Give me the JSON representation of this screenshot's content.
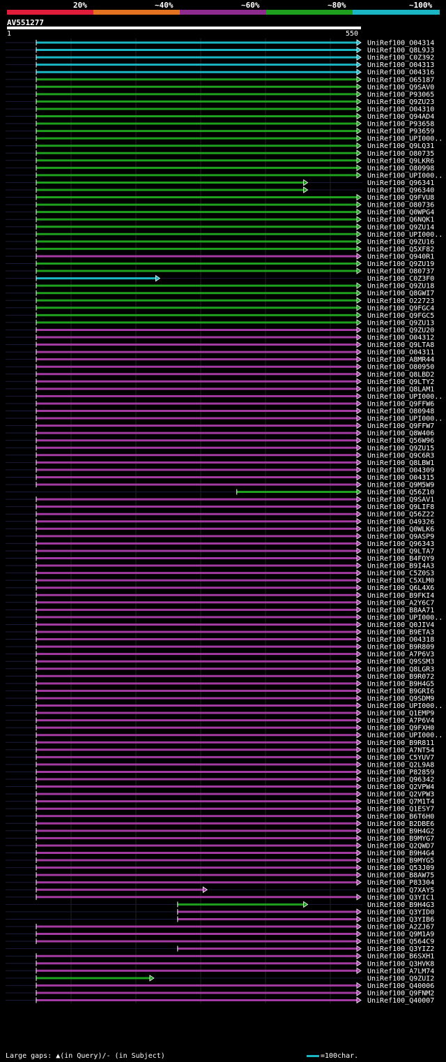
{
  "chart_data": {
    "type": "alignment-overview",
    "query_id": "AV551277",
    "query_length_start": "1",
    "query_length_end": "550",
    "identity_legend": [
      {
        "label": "20%",
        "color": "#e01e3c"
      },
      {
        "label": "~40%",
        "color": "#e37321"
      },
      {
        "label": "~60%",
        "color": "#8e2b8e"
      },
      {
        "label": "~80%",
        "color": "#1ea01e"
      },
      {
        "label": "~100%",
        "color": "#1ab6c4"
      }
    ],
    "gap_legend": "Large gaps: ▲(in Query)/- (in Subject)",
    "scale_legend": "=100char.",
    "hits": [
      {
        "name": "UniRef100_O04314",
        "color": "cyan",
        "start": 1,
        "end": 550
      },
      {
        "name": "UniRef100_Q8L9J3",
        "color": "cyan",
        "start": 1,
        "end": 550
      },
      {
        "name": "UniRef100_C0Z392",
        "color": "cyan",
        "start": 1,
        "end": 550
      },
      {
        "name": "UniRef100_O04313",
        "color": "cyan",
        "start": 1,
        "end": 550
      },
      {
        "name": "UniRef100_O04316",
        "color": "cyan",
        "start": 1,
        "end": 550
      },
      {
        "name": "UniRef100_O65187",
        "color": "green",
        "start": 1,
        "end": 550
      },
      {
        "name": "UniRef100_Q9SAV0",
        "color": "green",
        "start": 1,
        "end": 550
      },
      {
        "name": "UniRef100_P93065",
        "color": "green",
        "start": 1,
        "end": 550
      },
      {
        "name": "UniRef100_Q9ZU23",
        "color": "green",
        "start": 1,
        "end": 550
      },
      {
        "name": "UniRef100_O04310",
        "color": "green",
        "start": 1,
        "end": 550
      },
      {
        "name": "UniRef100_Q94AD4",
        "color": "green",
        "start": 1,
        "end": 550
      },
      {
        "name": "UniRef100_P93658",
        "color": "green",
        "start": 1,
        "end": 550
      },
      {
        "name": "UniRef100_P93659",
        "color": "green",
        "start": 1,
        "end": 550
      },
      {
        "name": "UniRef100_UPI000..",
        "color": "green",
        "start": 1,
        "end": 550
      },
      {
        "name": "UniRef100_Q9LQ31",
        "color": "green",
        "start": 1,
        "end": 550
      },
      {
        "name": "UniRef100_O80735",
        "color": "green",
        "start": 1,
        "end": 550
      },
      {
        "name": "UniRef100_Q9LKR6",
        "color": "green",
        "start": 1,
        "end": 550
      },
      {
        "name": "UniRef100_O80998",
        "color": "green",
        "start": 1,
        "end": 550
      },
      {
        "name": "UniRef100_UPI000..",
        "color": "green",
        "start": 1,
        "end": 550
      },
      {
        "name": "UniRef100_Q96341",
        "color": "green",
        "start": 1,
        "end": 460
      },
      {
        "name": "UniRef100_Q96340",
        "color": "green",
        "start": 1,
        "end": 460
      },
      {
        "name": "UniRef100_Q9FVU8",
        "color": "green",
        "start": 1,
        "end": 550
      },
      {
        "name": "UniRef100_O80736",
        "color": "green",
        "start": 1,
        "end": 550
      },
      {
        "name": "UniRef100_Q0WPG4",
        "color": "green",
        "start": 1,
        "end": 550
      },
      {
        "name": "UniRef100_Q6NQK1",
        "color": "green",
        "start": 1,
        "end": 550
      },
      {
        "name": "UniRef100_Q9ZU14",
        "color": "green",
        "start": 1,
        "end": 550
      },
      {
        "name": "UniRef100_UPI000..",
        "color": "green",
        "start": 1,
        "end": 550
      },
      {
        "name": "UniRef100_Q9ZU16",
        "color": "green",
        "start": 1,
        "end": 550
      },
      {
        "name": "UniRef100_Q5XF82",
        "color": "green",
        "start": 1,
        "end": 550
      },
      {
        "name": "UniRef100_Q940R1",
        "color": "magenta",
        "start": 1,
        "end": 550
      },
      {
        "name": "UniRef100_Q9ZU19",
        "color": "green",
        "start": 1,
        "end": 550
      },
      {
        "name": "UniRef100_O80737",
        "color": "green",
        "start": 1,
        "end": 550
      },
      {
        "name": "UniRef100_C0Z3F0",
        "color": "cyan",
        "start": 1,
        "end": 210
      },
      {
        "name": "UniRef100_Q9ZU18",
        "color": "green",
        "start": 1,
        "end": 550
      },
      {
        "name": "UniRef100_Q8GWI7",
        "color": "green",
        "start": 1,
        "end": 550
      },
      {
        "name": "UniRef100_O22723",
        "color": "green",
        "start": 1,
        "end": 550
      },
      {
        "name": "UniRef100_Q9FGC4",
        "color": "green",
        "start": 1,
        "end": 550
      },
      {
        "name": "UniRef100_Q9FGC5",
        "color": "green",
        "start": 1,
        "end": 550
      },
      {
        "name": "UniRef100_Q9ZU13",
        "color": "green",
        "start": 1,
        "end": 550
      },
      {
        "name": "UniRef100_Q9ZU20",
        "color": "magenta",
        "start": 1,
        "end": 550
      },
      {
        "name": "UniRef100_O04312",
        "color": "magenta",
        "start": 1,
        "end": 550
      },
      {
        "name": "UniRef100_Q9LTA8",
        "color": "magenta",
        "start": 1,
        "end": 550
      },
      {
        "name": "UniRef100_O04311",
        "color": "magenta",
        "start": 1,
        "end": 550
      },
      {
        "name": "UniRef100_A8MR44",
        "color": "magenta",
        "start": 1,
        "end": 550
      },
      {
        "name": "UniRef100_O80950",
        "color": "magenta",
        "start": 1,
        "end": 550
      },
      {
        "name": "UniRef100_Q8LBD2",
        "color": "magenta",
        "start": 1,
        "end": 550
      },
      {
        "name": "UniRef100_Q9LTY2",
        "color": "magenta",
        "start": 1,
        "end": 550
      },
      {
        "name": "UniRef100_Q8LAM1",
        "color": "magenta",
        "start": 1,
        "end": 550
      },
      {
        "name": "UniRef100_UPI000..",
        "color": "magenta",
        "start": 1,
        "end": 550
      },
      {
        "name": "UniRef100_Q9FFW6",
        "color": "magenta",
        "start": 1,
        "end": 550
      },
      {
        "name": "UniRef100_O80948",
        "color": "magenta",
        "start": 1,
        "end": 550
      },
      {
        "name": "UniRef100_UPI000..",
        "color": "magenta",
        "start": 1,
        "end": 550
      },
      {
        "name": "UniRef100_Q9FFW7",
        "color": "magenta",
        "start": 1,
        "end": 550
      },
      {
        "name": "UniRef100_Q8W406",
        "color": "magenta",
        "start": 1,
        "end": 550
      },
      {
        "name": "UniRef100_Q56W96",
        "color": "magenta",
        "start": 1,
        "end": 550
      },
      {
        "name": "UniRef100_Q9ZU15",
        "color": "magenta",
        "start": 1,
        "end": 550
      },
      {
        "name": "UniRef100_Q9C6R3",
        "color": "magenta",
        "start": 1,
        "end": 550
      },
      {
        "name": "UniRef100_Q8LBW1",
        "color": "magenta",
        "start": 1,
        "end": 550
      },
      {
        "name": "UniRef100_O04309",
        "color": "magenta",
        "start": 1,
        "end": 550
      },
      {
        "name": "UniRef100_O04315",
        "color": "magenta",
        "start": 1,
        "end": 550
      },
      {
        "name": "UniRef100_Q9M5W9",
        "color": "magenta",
        "start": 1,
        "end": 550
      },
      {
        "name": "UniRef100_Q56Z10",
        "color": "green",
        "start": 340,
        "end": 550
      },
      {
        "name": "UniRef100_Q9SAV1",
        "color": "magenta",
        "start": 1,
        "end": 550
      },
      {
        "name": "UniRef100_Q9LIF8",
        "color": "magenta",
        "start": 1,
        "end": 550
      },
      {
        "name": "UniRef100_Q56Z22",
        "color": "magenta",
        "start": 1,
        "end": 550
      },
      {
        "name": "UniRef100_O49326",
        "color": "magenta",
        "start": 1,
        "end": 550
      },
      {
        "name": "UniRef100_Q0WLK6",
        "color": "magenta",
        "start": 1,
        "end": 550
      },
      {
        "name": "UniRef100_Q9ASP9",
        "color": "magenta",
        "start": 1,
        "end": 550
      },
      {
        "name": "UniRef100_Q96343",
        "color": "magenta",
        "start": 1,
        "end": 550
      },
      {
        "name": "UniRef100_Q9LTA7",
        "color": "magenta",
        "start": 1,
        "end": 550
      },
      {
        "name": "UniRef100_B4FQY9",
        "color": "magenta",
        "start": 1,
        "end": 550
      },
      {
        "name": "UniRef100_B9I4A3",
        "color": "magenta",
        "start": 1,
        "end": 550
      },
      {
        "name": "UniRef100_C5Z0S3",
        "color": "magenta",
        "start": 1,
        "end": 550
      },
      {
        "name": "UniRef100_C5XLM0",
        "color": "magenta",
        "start": 1,
        "end": 550
      },
      {
        "name": "UniRef100_Q6L4X6",
        "color": "magenta",
        "start": 1,
        "end": 550
      },
      {
        "name": "UniRef100_B9FKI4",
        "color": "magenta",
        "start": 1,
        "end": 550
      },
      {
        "name": "UniRef100_A2Y6C7",
        "color": "magenta",
        "start": 1,
        "end": 550
      },
      {
        "name": "UniRef100_B8AA71",
        "color": "magenta",
        "start": 1,
        "end": 550
      },
      {
        "name": "UniRef100_UPI000..",
        "color": "magenta",
        "start": 1,
        "end": 550
      },
      {
        "name": "UniRef100_Q0JIV4",
        "color": "magenta",
        "start": 1,
        "end": 550
      },
      {
        "name": "UniRef100_B9ETA3",
        "color": "magenta",
        "start": 1,
        "end": 550
      },
      {
        "name": "UniRef100_O04318",
        "color": "magenta",
        "start": 1,
        "end": 550
      },
      {
        "name": "UniRef100_B9R809",
        "color": "magenta",
        "start": 1,
        "end": 550
      },
      {
        "name": "UniRef100_A7P6V3",
        "color": "magenta",
        "start": 1,
        "end": 550
      },
      {
        "name": "UniRef100_Q9SSM3",
        "color": "magenta",
        "start": 1,
        "end": 550
      },
      {
        "name": "UniRef100_Q8LGR3",
        "color": "magenta",
        "start": 1,
        "end": 550
      },
      {
        "name": "UniRef100_B9R072",
        "color": "magenta",
        "start": 1,
        "end": 550
      },
      {
        "name": "UniRef100_B9H4G5",
        "color": "magenta",
        "start": 1,
        "end": 550
      },
      {
        "name": "UniRef100_B9GRI6",
        "color": "magenta",
        "start": 1,
        "end": 550
      },
      {
        "name": "UniRef100_Q9SDM9",
        "color": "magenta",
        "start": 1,
        "end": 550
      },
      {
        "name": "UniRef100_UPI000..",
        "color": "magenta",
        "start": 1,
        "end": 550
      },
      {
        "name": "UniRef100_Q1EMP9",
        "color": "magenta",
        "start": 1,
        "end": 550
      },
      {
        "name": "UniRef100_A7P6V4",
        "color": "magenta",
        "start": 1,
        "end": 550
      },
      {
        "name": "UniRef100_Q9FXH0",
        "color": "magenta",
        "start": 1,
        "end": 550
      },
      {
        "name": "UniRef100_UPI000..",
        "color": "magenta",
        "start": 1,
        "end": 550
      },
      {
        "name": "UniRef100_B9R811",
        "color": "magenta",
        "start": 1,
        "end": 550
      },
      {
        "name": "UniRef100_A7NT54",
        "color": "magenta",
        "start": 1,
        "end": 550
      },
      {
        "name": "UniRef100_C5YUV7",
        "color": "magenta",
        "start": 1,
        "end": 550
      },
      {
        "name": "UniRef100_Q2L9A8",
        "color": "magenta",
        "start": 1,
        "end": 550
      },
      {
        "name": "UniRef100_P82859",
        "color": "magenta",
        "start": 1,
        "end": 550
      },
      {
        "name": "UniRef100_Q96342",
        "color": "magenta",
        "start": 1,
        "end": 550
      },
      {
        "name": "UniRef100_Q2VPW4",
        "color": "magenta",
        "start": 1,
        "end": 550
      },
      {
        "name": "UniRef100_Q2VPW3",
        "color": "magenta",
        "start": 1,
        "end": 550
      },
      {
        "name": "UniRef100_Q7M1T4",
        "color": "magenta",
        "start": 1,
        "end": 550
      },
      {
        "name": "UniRef100_Q1ESY7",
        "color": "magenta",
        "start": 1,
        "end": 550
      },
      {
        "name": "UniRef100_B6T6H0",
        "color": "magenta",
        "start": 1,
        "end": 550
      },
      {
        "name": "UniRef100_B2DBE6",
        "color": "magenta",
        "start": 1,
        "end": 550
      },
      {
        "name": "UniRef100_B9H4G2",
        "color": "magenta",
        "start": 1,
        "end": 550
      },
      {
        "name": "UniRef100_B9MYG7",
        "color": "magenta",
        "start": 1,
        "end": 550
      },
      {
        "name": "UniRef100_Q2QWD7",
        "color": "magenta",
        "start": 1,
        "end": 550
      },
      {
        "name": "UniRef100_B9H4G4",
        "color": "magenta",
        "start": 1,
        "end": 550
      },
      {
        "name": "UniRef100_B9MYG5",
        "color": "magenta",
        "start": 1,
        "end": 550
      },
      {
        "name": "UniRef100_Q53J09",
        "color": "magenta",
        "start": 1,
        "end": 550
      },
      {
        "name": "UniRef100_B8AW75",
        "color": "magenta",
        "start": 1,
        "end": 550
      },
      {
        "name": "UniRef100_P83304",
        "color": "magenta",
        "start": 1,
        "end": 550
      },
      {
        "name": "UniRef100_Q7XAY5",
        "color": "magenta",
        "start": 1,
        "end": 290
      },
      {
        "name": "UniRef100_Q3YIC1",
        "color": "magenta",
        "start": 1,
        "end": 550
      },
      {
        "name": "UniRef100_B9H4G3",
        "color": "green",
        "start": 240,
        "end": 460
      },
      {
        "name": "UniRef100_Q3YID0",
        "color": "magenta",
        "start": 240,
        "end": 550
      },
      {
        "name": "UniRef100_Q3YIB6",
        "color": "magenta",
        "start": 240,
        "end": 550
      },
      {
        "name": "UniRef100_A2ZJ67",
        "color": "magenta",
        "start": 1,
        "end": 550
      },
      {
        "name": "UniRef100_Q9M1A9",
        "color": "magenta",
        "start": 1,
        "end": 550
      },
      {
        "name": "UniRef100_Q564C9",
        "color": "magenta",
        "start": 1,
        "end": 550
      },
      {
        "name": "UniRef100_Q3YIZ2",
        "color": "magenta",
        "start": 240,
        "end": 550
      },
      {
        "name": "UniRef100_B6SXH1",
        "color": "magenta",
        "start": 1,
        "end": 550
      },
      {
        "name": "UniRef100_Q3HVK8",
        "color": "magenta",
        "start": 1,
        "end": 550
      },
      {
        "name": "UniRef100_A7LM74",
        "color": "magenta",
        "start": 1,
        "end": 550
      },
      {
        "name": "UniRef100_Q9ZUI2",
        "color": "green",
        "start": 1,
        "end": 200
      },
      {
        "name": "UniRef100_Q40006",
        "color": "magenta",
        "start": 1,
        "end": 550
      },
      {
        "name": "UniRef100_Q9FNM2",
        "color": "magenta",
        "start": 1,
        "end": 550
      },
      {
        "name": "UniRef100_Q40007",
        "color": "magenta",
        "start": 1,
        "end": 550
      }
    ]
  }
}
